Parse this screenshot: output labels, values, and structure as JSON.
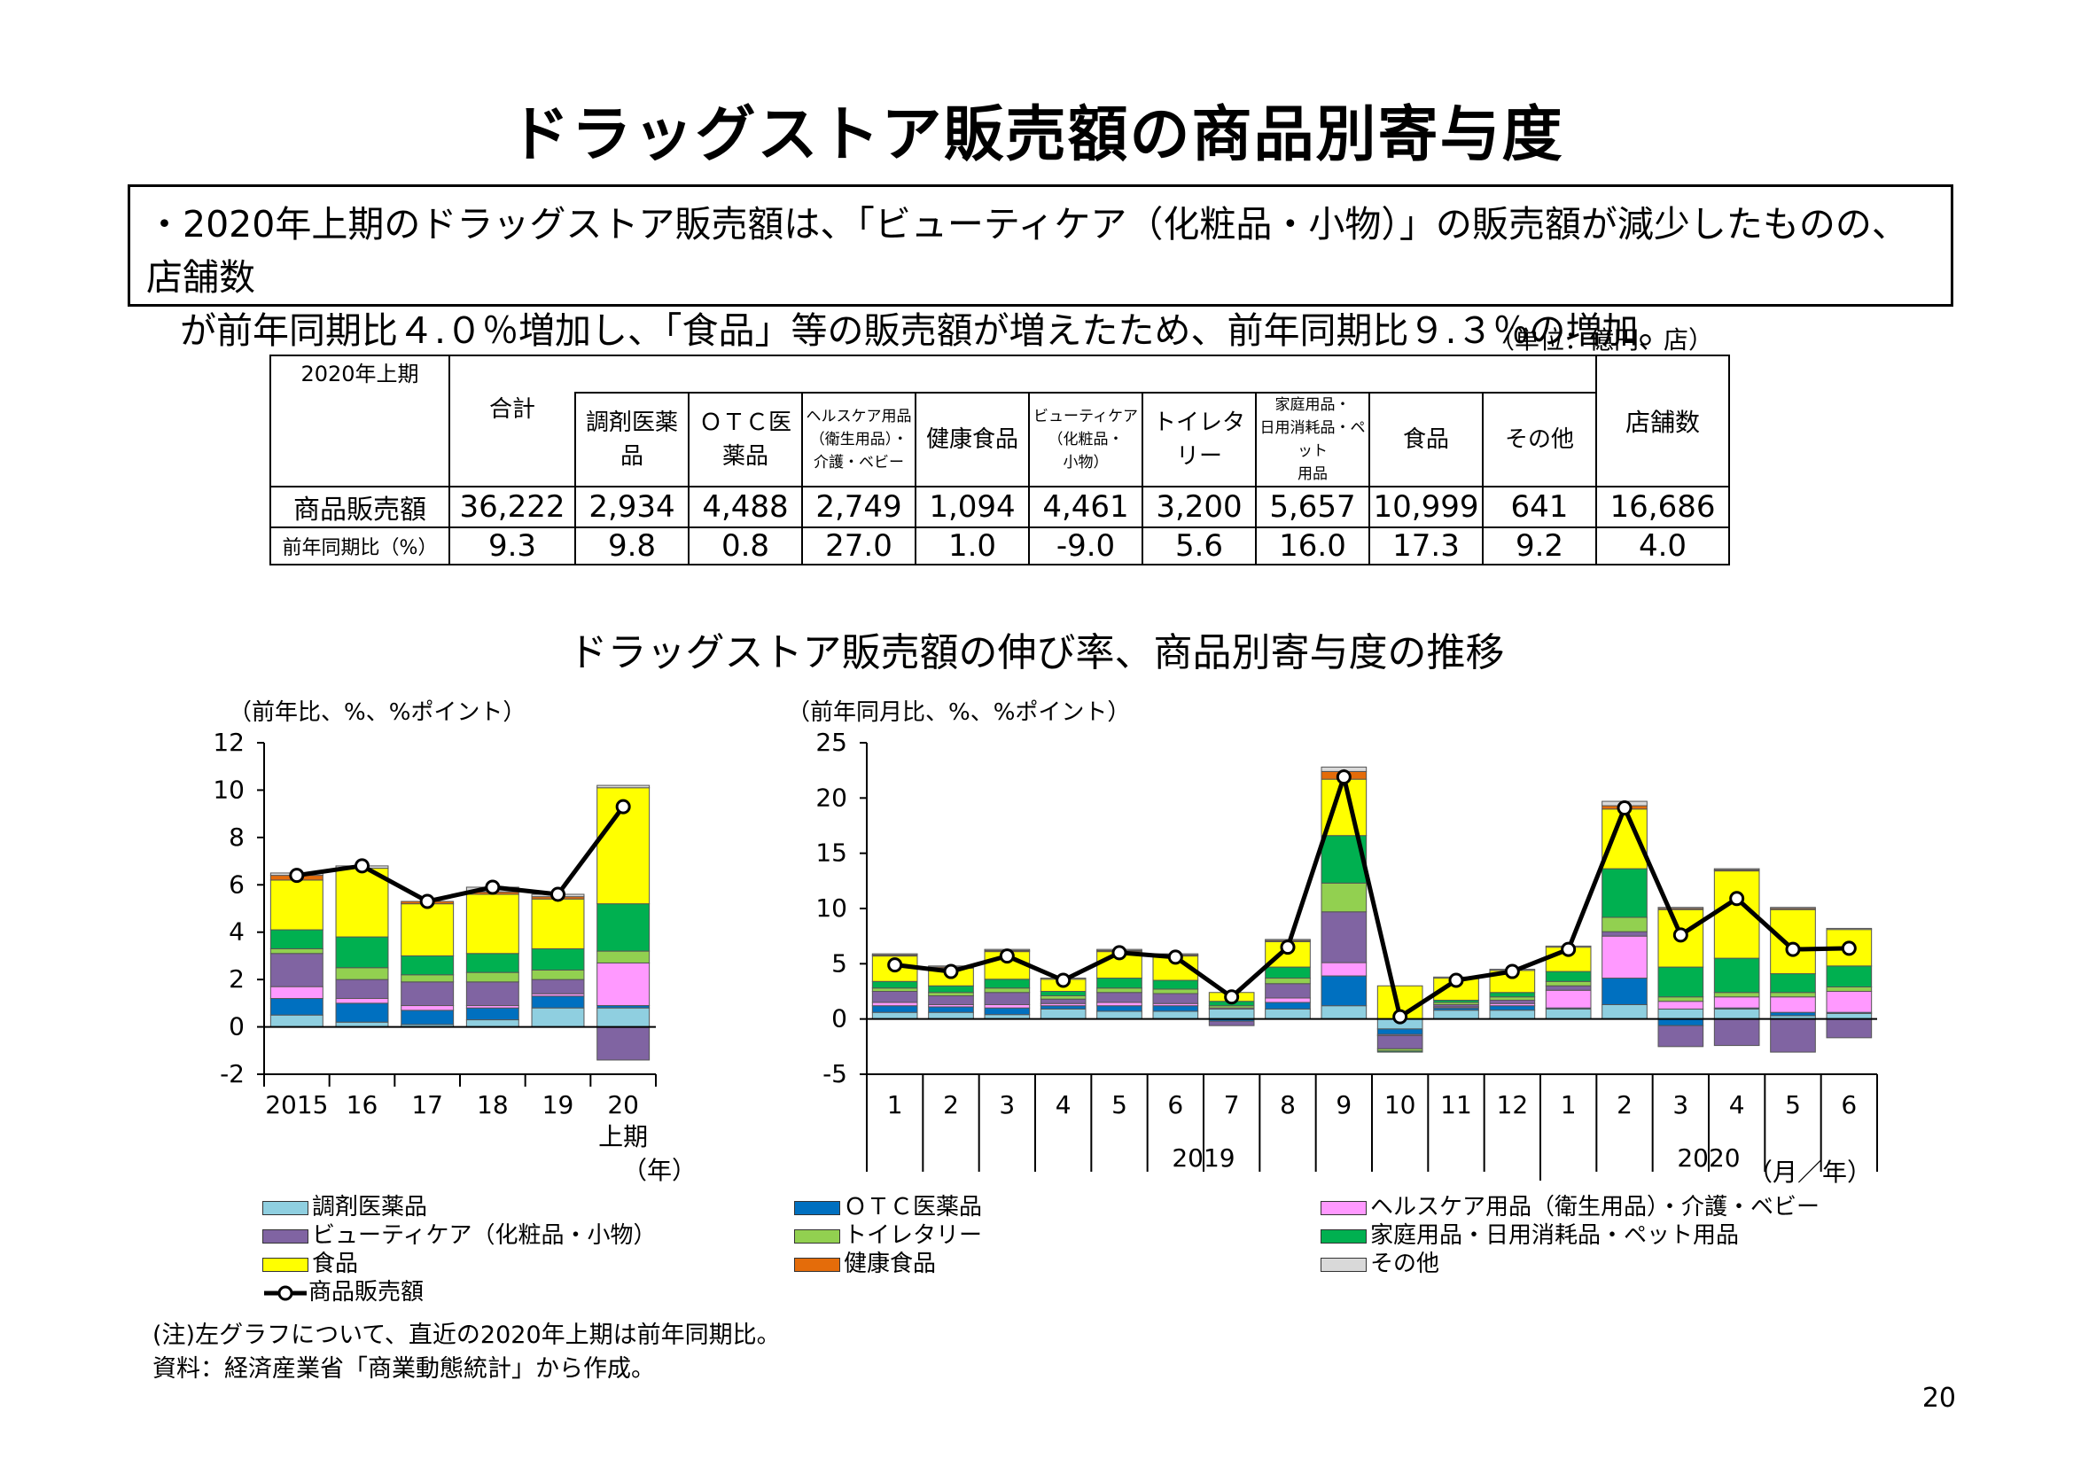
{
  "title": "ドラッグストア販売額の商品別寄与度",
  "summary": {
    "line1": "・2020年上期のドラッグストア販売額は、「ビューティケア（化粧品・小物）」の販売額が減少したものの、店舗数",
    "line2": "が前年同期比４.０％増加し、「食品」等の販売額が増えたため、前年同期比９.３％の増加。"
  },
  "table": {
    "unit": "（単位：億円、店）",
    "period": "2020年上期",
    "headers": [
      "合計",
      "調剤医薬品",
      "ＯＴＣ医薬品",
      "ヘルスケア用品（衛生用品）・介護・ベビー",
      "健康食品",
      "ビューティケア（化粧品・小物）",
      "トイレタリー",
      "家庭用品・日用消耗品・ペット用品",
      "食品",
      "その他",
      "店舗数"
    ],
    "header_lines": [
      [
        "合計"
      ],
      [
        "調剤医薬",
        "品"
      ],
      [
        "ＯＴＣ医",
        "薬品"
      ],
      [
        "ヘルスケア用品",
        "（衛生用品）・",
        "介護・ベビー"
      ],
      [
        "健康食品"
      ],
      [
        "ビューティケア",
        "（化粧品・",
        "小物）"
      ],
      [
        "トイレタリー"
      ],
      [
        "家庭用品・",
        "日用消耗品・ペット",
        "用品"
      ],
      [
        "食品"
      ],
      [
        "その他"
      ],
      [
        "店舗数"
      ]
    ],
    "row1_label": "商品販売額",
    "row1": [
      "36,222",
      "2,934",
      "4,488",
      "2,749",
      "1,094",
      "4,461",
      "3,200",
      "5,657",
      "10,999",
      "641",
      "16,686"
    ],
    "row2_label": "前年同期比（%）",
    "row2": [
      "9.3",
      "9.8",
      "0.8",
      "27.0",
      "1.0",
      "-9.0",
      "5.6",
      "16.0",
      "17.3",
      "9.2",
      "4.0"
    ]
  },
  "subtitle": "ドラッグストア販売額の伸び率、商品別寄与度の推移",
  "colors": {
    "dispensing": "#8fcfe0",
    "otc": "#0070c0",
    "healthcare": "#ff99ff",
    "beauty": "#8064a2",
    "toiletry": "#92d050",
    "household": "#00b050",
    "food": "#ffff00",
    "health_food": "#e46c0a",
    "other": "#d9d9d9",
    "line": "#000000"
  },
  "legend": [
    {
      "key": "dispensing",
      "label": "調剤医薬品"
    },
    {
      "key": "otc",
      "label": "ＯＴＣ医薬品"
    },
    {
      "key": "healthcare",
      "label": "ヘルスケア用品（衛生用品）・介護・ベビー"
    },
    {
      "key": "beauty",
      "label": "ビューティケア（化粧品・小物）"
    },
    {
      "key": "toiletry",
      "label": "トイレタリー"
    },
    {
      "key": "household",
      "label": "家庭用品・日用消耗品・ペット用品"
    },
    {
      "key": "food",
      "label": "食品"
    },
    {
      "key": "health_food",
      "label": "健康食品"
    },
    {
      "key": "other",
      "label": "その他"
    },
    {
      "key": "line",
      "label": "商品販売額",
      "type": "line"
    }
  ],
  "chart_data": [
    {
      "type": "bar",
      "stacked": true,
      "ylabel": "（前年比、%、%ポイント）",
      "ylim": [
        -2,
        12
      ],
      "yticks": [
        -2,
        0,
        2,
        4,
        6,
        8,
        10,
        12
      ],
      "categories": [
        "2015",
        "16",
        "17",
        "18",
        "19",
        "20"
      ],
      "category_sublabel": {
        "index": 5,
        "text": "上期"
      },
      "x_unit": "（年）",
      "stack_order": [
        "dispensing",
        "otc",
        "healthcare",
        "beauty",
        "toiletry",
        "household",
        "food",
        "health_food",
        "other"
      ],
      "series": [
        {
          "key": "dispensing",
          "values": [
            0.5,
            0.2,
            0.1,
            0.3,
            0.8,
            0.8
          ]
        },
        {
          "key": "otc",
          "values": [
            0.7,
            0.8,
            0.6,
            0.5,
            0.5,
            0.1
          ]
        },
        {
          "key": "healthcare",
          "values": [
            0.5,
            0.2,
            0.2,
            0.1,
            0.1,
            1.8
          ]
        },
        {
          "key": "beauty",
          "values": [
            1.4,
            0.8,
            1.0,
            1.0,
            0.6,
            -1.4
          ]
        },
        {
          "key": "toiletry",
          "values": [
            0.2,
            0.5,
            0.3,
            0.4,
            0.4,
            0.5
          ]
        },
        {
          "key": "household",
          "values": [
            0.8,
            1.3,
            0.8,
            0.8,
            0.9,
            2.0
          ]
        },
        {
          "key": "food",
          "values": [
            2.1,
            2.9,
            2.2,
            2.5,
            2.1,
            4.9
          ]
        },
        {
          "key": "health_food",
          "values": [
            0.2,
            0.0,
            0.1,
            0.1,
            0.1,
            0.0
          ]
        },
        {
          "key": "other",
          "values": [
            0.1,
            0.1,
            0.0,
            0.2,
            0.1,
            0.1
          ]
        }
      ],
      "line": {
        "key": "line",
        "values": [
          6.4,
          6.8,
          5.3,
          5.9,
          5.6,
          9.3
        ]
      }
    },
    {
      "type": "bar",
      "stacked": true,
      "ylabel": "（前年同月比、%、%ポイント）",
      "ylim": [
        -5,
        25
      ],
      "yticks": [
        -5,
        0,
        5,
        10,
        15,
        20,
        25
      ],
      "categories": [
        "1",
        "2",
        "3",
        "4",
        "5",
        "6",
        "7",
        "8",
        "9",
        "10",
        "11",
        "12",
        "1",
        "2",
        "3",
        "4",
        "5",
        "6"
      ],
      "year_groups": [
        {
          "label": "2019",
          "start": 0,
          "end": 11
        },
        {
          "label": "2020",
          "start": 12,
          "end": 17
        }
      ],
      "x_unit": "（月／年）",
      "stack_order": [
        "dispensing",
        "otc",
        "healthcare",
        "beauty",
        "toiletry",
        "household",
        "food",
        "health_food",
        "other"
      ],
      "series": [
        {
          "key": "dispensing",
          "values": [
            0.6,
            0.6,
            0.4,
            0.9,
            0.7,
            0.7,
            0.9,
            0.9,
            1.2,
            -0.9,
            0.8,
            0.8,
            0.9,
            1.3,
            0.9,
            0.9,
            0.3,
            0.5
          ]
        },
        {
          "key": "otc",
          "values": [
            0.6,
            0.5,
            0.6,
            0.3,
            0.5,
            0.5,
            -0.2,
            0.6,
            2.7,
            -0.5,
            0.2,
            0.4,
            0.1,
            2.4,
            -0.6,
            0.1,
            0.3,
            0.1
          ]
        },
        {
          "key": "healthcare",
          "values": [
            0.3,
            0.2,
            0.3,
            0.2,
            0.3,
            0.2,
            0.1,
            0.4,
            1.2,
            -0.1,
            0.1,
            0.2,
            1.6,
            3.8,
            0.7,
            1.0,
            1.4,
            1.9
          ]
        },
        {
          "key": "beauty",
          "values": [
            1.0,
            0.8,
            1.1,
            0.4,
            0.9,
            0.9,
            -0.4,
            1.3,
            4.6,
            -1.2,
            0.2,
            0.3,
            0.4,
            0.4,
            -1.9,
            -2.4,
            -3.0,
            -1.7
          ]
        },
        {
          "key": "toiletry",
          "values": [
            0.3,
            0.3,
            0.4,
            0.3,
            0.4,
            0.4,
            0.2,
            0.5,
            2.6,
            -0.2,
            0.2,
            0.3,
            0.4,
            1.3,
            0.4,
            0.4,
            0.4,
            0.4
          ]
        },
        {
          "key": "household",
          "values": [
            0.6,
            0.6,
            0.8,
            0.4,
            0.9,
            0.8,
            0.4,
            1.0,
            4.3,
            -0.1,
            0.2,
            0.4,
            0.9,
            4.4,
            2.7,
            3.1,
            1.7,
            1.9
          ]
        },
        {
          "key": "food",
          "values": [
            2.3,
            1.6,
            2.5,
            1.1,
            2.4,
            2.2,
            0.8,
            2.3,
            5.1,
            3.0,
            2.0,
            2.0,
            2.2,
            5.4,
            5.2,
            7.9,
            5.8,
            3.3
          ]
        },
        {
          "key": "health_food",
          "values": [
            0.1,
            0.1,
            0.1,
            0.0,
            0.1,
            0.1,
            0.0,
            0.1,
            0.7,
            0.0,
            0.0,
            0.0,
            0.0,
            0.3,
            0.1,
            0.1,
            0.1,
            0.0
          ]
        },
        {
          "key": "other",
          "values": [
            0.1,
            0.1,
            0.1,
            0.1,
            0.1,
            0.1,
            0.0,
            0.1,
            0.4,
            0.0,
            0.1,
            0.1,
            0.1,
            0.4,
            0.1,
            0.1,
            0.1,
            0.1
          ]
        }
      ],
      "line": {
        "key": "line",
        "values": [
          4.9,
          4.3,
          5.7,
          3.5,
          6.0,
          5.6,
          2.0,
          6.5,
          21.9,
          0.2,
          3.5,
          4.3,
          6.3,
          19.1,
          7.6,
          10.9,
          6.3,
          6.4
        ]
      }
    }
  ],
  "notes": {
    "note1": "(注)左グラフについて、直近の2020年上期は前年同期比。",
    "note2": "資料：経済産業省「商業動態統計」から作成。"
  },
  "page_number": "20"
}
